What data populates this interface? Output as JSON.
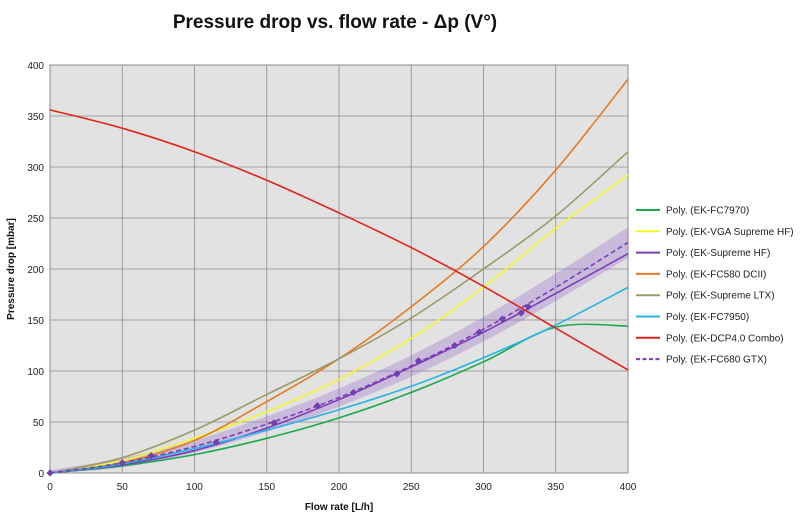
{
  "chart_data": {
    "type": "line",
    "title": "Pressure drop vs. flow rate - Δp (V°)",
    "xlabel": "Flow rate [L/h]",
    "ylabel": "Pressure drop [mbar]",
    "xlim": [
      0,
      400
    ],
    "ylim": [
      0,
      400
    ],
    "xticks": [
      "0",
      "50",
      "100",
      "150",
      "200",
      "250",
      "300",
      "350",
      "400"
    ],
    "yticks": [
      "0",
      "50",
      "100",
      "150",
      "200",
      "250",
      "300",
      "350",
      "400"
    ],
    "grid": true,
    "plot_background": "#e2e2e2",
    "legend_position": "right",
    "x": [
      0,
      50,
      100,
      150,
      200,
      250,
      300,
      350,
      400
    ],
    "series": [
      {
        "name": "Poly. (EK-FC7970)",
        "color": "#1ba84e",
        "style": "solid",
        "values": [
          0,
          7,
          18,
          34,
          54,
          79,
          109,
          143,
          144
        ]
      },
      {
        "name": "Poly. (EK-VGA Supreme HF)",
        "color": "#f5f52a",
        "style": "solid",
        "values": [
          0,
          12,
          34,
          60,
          92,
          132,
          182,
          240,
          292
        ]
      },
      {
        "name": "Poly. (EK-Supreme HF)",
        "color": "#7a3eb4",
        "style": "solid",
        "values": [
          0,
          8,
          22,
          44,
          72,
          104,
          138,
          176,
          215
        ]
      },
      {
        "name": "Poly. (EK-FC580 DCII)",
        "color": "#e57a22",
        "style": "solid",
        "values": [
          0,
          10,
          32,
          70,
          112,
          163,
          222,
          297,
          386
        ]
      },
      {
        "name": "Poly. (EK-Supreme LTX)",
        "color": "#9a9a6a",
        "style": "solid",
        "values": [
          0,
          15,
          42,
          77,
          112,
          152,
          200,
          252,
          315
        ]
      },
      {
        "name": "Poly. (EK-FC7950)",
        "color": "#26b4e6",
        "style": "solid",
        "values": [
          0,
          9,
          24,
          42,
          62,
          85,
          113,
          145,
          182
        ]
      },
      {
        "name": "Poly. (EK-DCP4.0 Combo)",
        "color": "#e0241c",
        "style": "solid",
        "values": [
          356,
          338,
          315,
          287,
          255,
          221,
          183,
          142,
          101
        ]
      },
      {
        "name": "Poly. (EK-FC680 GTX)",
        "color": "#7a3eb4",
        "style": "dashed",
        "values": [
          0,
          10,
          26,
          48,
          74,
          105,
          141,
          182,
          226
        ]
      }
    ],
    "markers": {
      "series": "EK-FC680 GTX",
      "color": "#7040b0",
      "x": [
        0,
        50,
        70,
        115,
        155,
        185,
        210,
        240,
        255,
        280,
        297,
        313,
        326,
        331
      ],
      "y": [
        0,
        10,
        17,
        30,
        49,
        66,
        79,
        97,
        110,
        125,
        138,
        151,
        157,
        163
      ]
    }
  }
}
